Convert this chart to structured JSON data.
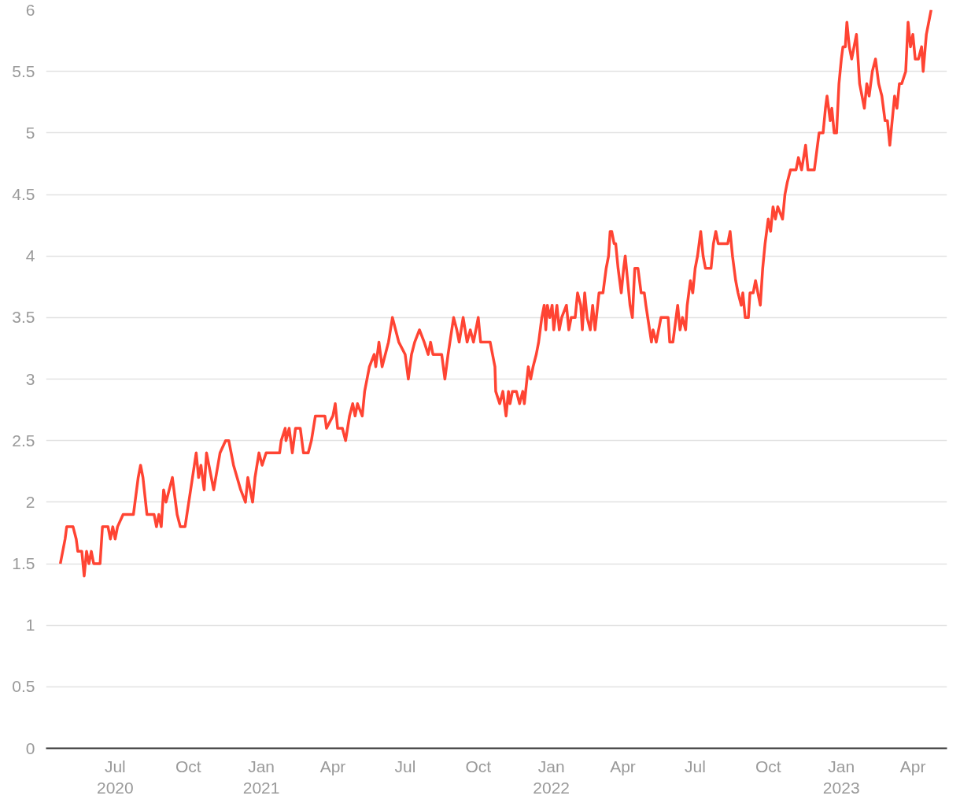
{
  "chart_data": {
    "type": "line",
    "grid": "y",
    "xlim": [
      "2020-04-05",
      "2023-05-14"
    ],
    "ylim": [
      0,
      6
    ],
    "yticks": [
      0,
      0.5,
      1,
      1.5,
      2,
      2.5,
      3,
      3.5,
      4,
      4.5,
      5,
      5.5,
      6
    ],
    "xticks": [
      {
        "value": "2020-07-01",
        "label": "Jul\n2020"
      },
      {
        "value": "2020-10-01",
        "label": "Oct"
      },
      {
        "value": "2021-01-01",
        "label": "Jan\n2021"
      },
      {
        "value": "2021-04-01",
        "label": "Apr"
      },
      {
        "value": "2021-07-01",
        "label": "Jul"
      },
      {
        "value": "2021-10-01",
        "label": "Oct"
      },
      {
        "value": "2022-01-01",
        "label": "Jan\n2022"
      },
      {
        "value": "2022-04-01",
        "label": "Apr"
      },
      {
        "value": "2022-07-01",
        "label": "Jul"
      },
      {
        "value": "2022-10-01",
        "label": "Oct"
      },
      {
        "value": "2023-01-01",
        "label": "Jan\n2023"
      },
      {
        "value": "2023-04-01",
        "label": "Apr"
      }
    ],
    "line_style": "solid",
    "marker": "none",
    "x": [
      "2020-04-23",
      "2020-04-29",
      "2020-05-01",
      "2020-05-09",
      "2020-05-13",
      "2020-05-15",
      "2020-05-20",
      "2020-05-23",
      "2020-05-26",
      "2020-05-29",
      "2020-06-01",
      "2020-06-04",
      "2020-06-12",
      "2020-06-15",
      "2020-06-22",
      "2020-06-25",
      "2020-06-28",
      "2020-07-01",
      "2020-07-04",
      "2020-07-11",
      "2020-07-24",
      "2020-07-30",
      "2020-08-02",
      "2020-08-05",
      "2020-08-10",
      "2020-08-19",
      "2020-08-22",
      "2020-08-25",
      "2020-08-28",
      "2020-08-31",
      "2020-09-03",
      "2020-09-11",
      "2020-09-13",
      "2020-09-17",
      "2020-09-21",
      "2020-09-27",
      "2020-10-04",
      "2020-10-11",
      "2020-10-14",
      "2020-10-17",
      "2020-10-21",
      "2020-10-24",
      "2020-10-27",
      "2020-11-02",
      "2020-11-10",
      "2020-11-17",
      "2020-11-21",
      "2020-11-27",
      "2020-12-06",
      "2020-12-12",
      "2020-12-15",
      "2020-12-21",
      "2020-12-24",
      "2020-12-29",
      "2021-01-02",
      "2021-01-07",
      "2021-01-24",
      "2021-01-26",
      "2021-01-31",
      "2021-02-01",
      "2021-02-05",
      "2021-02-09",
      "2021-02-13",
      "2021-02-19",
      "2021-02-23",
      "2021-03-01",
      "2021-03-05",
      "2021-03-10",
      "2021-03-22",
      "2021-03-24",
      "2021-04-01",
      "2021-04-04",
      "2021-04-07",
      "2021-04-13",
      "2021-04-17",
      "2021-04-22",
      "2021-04-26",
      "2021-04-29",
      "2021-05-02",
      "2021-05-08",
      "2021-05-11",
      "2021-05-14",
      "2021-05-17",
      "2021-05-23",
      "2021-05-25",
      "2021-05-29",
      "2021-05-31",
      "2021-06-02",
      "2021-06-10",
      "2021-06-15",
      "2021-06-19",
      "2021-06-23",
      "2021-07-01",
      "2021-07-05",
      "2021-07-09",
      "2021-07-13",
      "2021-07-19",
      "2021-07-25",
      "2021-07-30",
      "2021-08-02",
      "2021-08-05",
      "2021-08-16",
      "2021-08-20",
      "2021-08-24",
      "2021-08-31",
      "2021-09-04",
      "2021-09-07",
      "2021-09-12",
      "2021-09-17",
      "2021-09-21",
      "2021-09-25",
      "2021-10-01",
      "2021-10-04",
      "2021-10-16",
      "2021-10-19",
      "2021-10-22",
      "2021-10-23",
      "2021-10-28",
      "2021-11-01",
      "2021-11-05",
      "2021-11-08",
      "2021-11-10",
      "2021-11-13",
      "2021-11-18",
      "2021-11-22",
      "2021-11-26",
      "2021-11-28",
      "2021-12-03",
      "2021-12-06",
      "2021-12-09",
      "2021-12-13",
      "2021-12-16",
      "2021-12-20",
      "2021-12-23",
      "2021-12-25",
      "2021-12-27",
      "2021-12-30",
      "2022-01-02",
      "2022-01-04",
      "2022-01-08",
      "2022-01-11",
      "2022-01-14",
      "2022-01-20",
      "2022-01-23",
      "2022-01-26",
      "2022-01-31",
      "2022-02-03",
      "2022-02-07",
      "2022-02-09",
      "2022-02-12",
      "2022-02-15",
      "2022-02-19",
      "2022-02-22",
      "2022-02-25",
      "2022-03-02",
      "2022-03-07",
      "2022-03-11",
      "2022-03-14",
      "2022-03-16",
      "2022-03-18",
      "2022-03-21",
      "2022-03-23",
      "2022-03-26",
      "2022-03-30",
      "2022-04-02",
      "2022-04-04",
      "2022-04-07",
      "2022-04-10",
      "2022-04-13",
      "2022-04-16",
      "2022-04-20",
      "2022-04-24",
      "2022-04-28",
      "2022-04-30",
      "2022-05-07",
      "2022-05-09",
      "2022-05-13",
      "2022-05-19",
      "2022-05-28",
      "2022-05-30",
      "2022-06-03",
      "2022-06-09",
      "2022-06-12",
      "2022-06-15",
      "2022-06-19",
      "2022-06-21",
      "2022-06-25",
      "2022-06-28",
      "2022-07-01",
      "2022-07-04",
      "2022-07-08",
      "2022-07-11",
      "2022-07-14",
      "2022-07-21",
      "2022-07-24",
      "2022-07-27",
      "2022-07-30",
      "2022-08-11",
      "2022-08-14",
      "2022-08-17",
      "2022-08-21",
      "2022-08-24",
      "2022-08-28",
      "2022-08-30",
      "2022-09-02",
      "2022-09-06",
      "2022-09-08",
      "2022-09-12",
      "2022-09-15",
      "2022-09-18",
      "2022-09-21",
      "2022-09-24",
      "2022-09-27",
      "2022-10-01",
      "2022-10-04",
      "2022-10-07",
      "2022-10-10",
      "2022-10-13",
      "2022-10-19",
      "2022-10-22",
      "2022-10-25",
      "2022-10-29",
      "2022-11-05",
      "2022-11-08",
      "2022-11-12",
      "2022-11-17",
      "2022-11-20",
      "2022-11-28",
      "2022-11-30",
      "2022-12-04",
      "2022-12-09",
      "2022-12-12",
      "2022-12-14",
      "2022-12-18",
      "2022-12-20",
      "2022-12-23",
      "2022-12-26",
      "2022-12-29",
      "2023-01-01",
      "2023-01-03",
      "2023-01-06",
      "2023-01-08",
      "2023-01-11",
      "2023-01-14",
      "2023-01-17",
      "2023-01-20",
      "2023-01-24",
      "2023-01-27",
      "2023-01-30",
      "2023-02-02",
      "2023-02-05",
      "2023-02-09",
      "2023-02-13",
      "2023-02-17",
      "2023-02-21",
      "2023-02-25",
      "2023-02-28",
      "2023-03-03",
      "2023-03-06",
      "2023-03-09",
      "2023-03-12",
      "2023-03-15",
      "2023-03-18",
      "2023-03-23",
      "2023-03-26",
      "2023-03-29",
      "2023-04-01",
      "2023-04-04",
      "2023-04-08",
      "2023-04-12",
      "2023-04-14",
      "2023-04-18",
      "2023-04-21",
      "2023-04-24"
    ],
    "series": [
      {
        "color": "#ff4433",
        "values": [
          1.5,
          1.7,
          1.8,
          1.8,
          1.7,
          1.6,
          1.6,
          1.4,
          1.6,
          1.5,
          1.6,
          1.5,
          1.5,
          1.8,
          1.8,
          1.7,
          1.8,
          1.7,
          1.8,
          1.9,
          1.9,
          2.2,
          2.3,
          2.2,
          1.9,
          1.9,
          1.8,
          1.9,
          1.8,
          2.1,
          2.0,
          2.2,
          2.1,
          1.9,
          1.8,
          1.8,
          2.1,
          2.4,
          2.2,
          2.3,
          2.1,
          2.4,
          2.3,
          2.1,
          2.4,
          2.5,
          2.5,
          2.3,
          2.1,
          2.0,
          2.2,
          2.0,
          2.2,
          2.4,
          2.3,
          2.4,
          2.4,
          2.5,
          2.6,
          2.5,
          2.6,
          2.4,
          2.6,
          2.6,
          2.4,
          2.4,
          2.5,
          2.7,
          2.7,
          2.6,
          2.7,
          2.8,
          2.6,
          2.6,
          2.5,
          2.7,
          2.8,
          2.7,
          2.8,
          2.7,
          2.9,
          3.0,
          3.1,
          3.2,
          3.1,
          3.3,
          3.2,
          3.1,
          3.3,
          3.5,
          3.4,
          3.3,
          3.2,
          3.0,
          3.2,
          3.3,
          3.4,
          3.3,
          3.2,
          3.3,
          3.2,
          3.2,
          3.0,
          3.2,
          3.5,
          3.4,
          3.3,
          3.5,
          3.3,
          3.4,
          3.3,
          3.5,
          3.3,
          3.3,
          3.2,
          3.1,
          2.9,
          2.8,
          2.9,
          2.7,
          2.9,
          2.8,
          2.9,
          2.9,
          2.8,
          2.9,
          2.8,
          3.1,
          3.0,
          3.1,
          3.2,
          3.3,
          3.5,
          3.6,
          3.4,
          3.6,
          3.5,
          3.6,
          3.4,
          3.6,
          3.4,
          3.5,
          3.6,
          3.4,
          3.5,
          3.5,
          3.7,
          3.6,
          3.4,
          3.7,
          3.5,
          3.4,
          3.6,
          3.4,
          3.7,
          3.7,
          3.9,
          4.0,
          4.2,
          4.2,
          4.1,
          4.1,
          3.9,
          3.7,
          3.9,
          4.0,
          3.8,
          3.6,
          3.5,
          3.9,
          3.9,
          3.7,
          3.7,
          3.6,
          3.3,
          3.4,
          3.3,
          3.5,
          3.5,
          3.3,
          3.3,
          3.6,
          3.4,
          3.5,
          3.4,
          3.6,
          3.8,
          3.7,
          3.9,
          4.0,
          4.2,
          4.0,
          3.9,
          3.9,
          4.1,
          4.2,
          4.1,
          4.1,
          4.2,
          4.0,
          3.8,
          3.7,
          3.6,
          3.7,
          3.5,
          3.5,
          3.7,
          3.7,
          3.8,
          3.7,
          3.6,
          3.9,
          4.1,
          4.3,
          4.2,
          4.4,
          4.3,
          4.4,
          4.3,
          4.5,
          4.6,
          4.7,
          4.7,
          4.8,
          4.7,
          4.9,
          4.7,
          4.7,
          4.8,
          5.0,
          5.0,
          5.2,
          5.3,
          5.1,
          5.2,
          5.0,
          5.0,
          5.4,
          5.6,
          5.7,
          5.7,
          5.9,
          5.7,
          5.6,
          5.7,
          5.8,
          5.4,
          5.3,
          5.2,
          5.4,
          5.3,
          5.5,
          5.6,
          5.4,
          5.3,
          5.1,
          5.1,
          4.9,
          5.1,
          5.3,
          5.2,
          5.4,
          5.4,
          5.5,
          5.9,
          5.7,
          5.8,
          5.6,
          5.6,
          5.7,
          5.5,
          5.8,
          5.9,
          6.0
        ]
      }
    ]
  }
}
